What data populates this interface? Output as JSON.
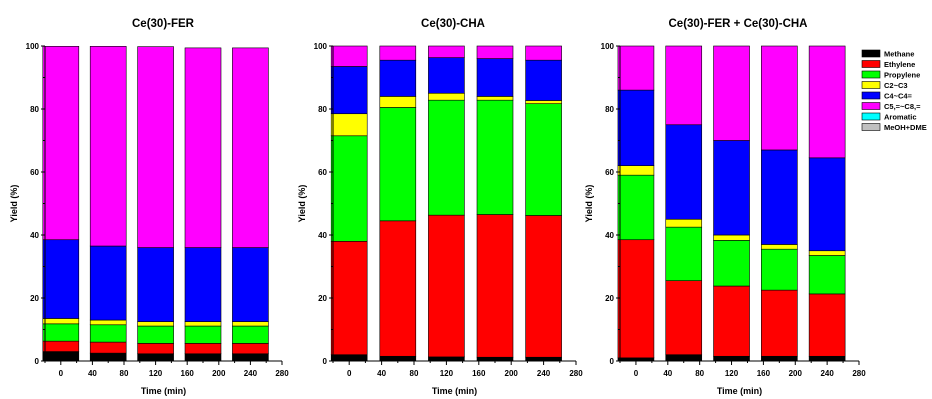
{
  "chart_data": [
    {
      "type": "bar",
      "stacked": true,
      "title": "Ce(30)-FER",
      "xlabel": "Time (min)",
      "ylabel": "Yield (%)",
      "ylim": [
        0,
        100
      ],
      "yticks": [
        0,
        20,
        40,
        60,
        80,
        100
      ],
      "xlim": [
        -20,
        280
      ],
      "xticks": [
        0,
        40,
        80,
        120,
        160,
        200,
        240,
        280
      ],
      "x": [
        0,
        60,
        120,
        180,
        240
      ],
      "series": [
        {
          "name": "Methane",
          "values": [
            3,
            2.5,
            2.3,
            2.3,
            2.3
          ]
        },
        {
          "name": "Ethylene",
          "values": [
            3.3,
            3.5,
            3.3,
            3.3,
            3.3
          ]
        },
        {
          "name": "Propylene",
          "values": [
            5.5,
            5.5,
            5.5,
            5.5,
            5.5
          ]
        },
        {
          "name": "C2~C3",
          "values": [
            1.7,
            1.5,
            1.4,
            1.4,
            1.4
          ]
        },
        {
          "name": "C4~C4=",
          "values": [
            25,
            23.5,
            23.5,
            23.5,
            23.5
          ]
        },
        {
          "name": "C5,=~C8,=",
          "values": [
            61.4,
            63.4,
            63.8,
            63.4,
            63.4
          ]
        },
        {
          "name": "Aromatic",
          "values": [
            0,
            0,
            0,
            0,
            0
          ]
        },
        {
          "name": "MeOH+DME",
          "values": [
            0,
            0,
            0,
            0,
            0
          ]
        }
      ]
    },
    {
      "type": "bar",
      "stacked": true,
      "title": "Ce(30)-CHA",
      "xlabel": "Time (min)",
      "ylabel": "Yield (%)",
      "ylim": [
        0,
        100
      ],
      "yticks": [
        0,
        20,
        40,
        60,
        80,
        100
      ],
      "xlim": [
        -20,
        280
      ],
      "xticks": [
        0,
        40,
        80,
        120,
        160,
        200,
        240,
        280
      ],
      "x": [
        0,
        60,
        120,
        180,
        240
      ],
      "series": [
        {
          "name": "Methane",
          "values": [
            2,
            1.5,
            1.3,
            1.2,
            1.2
          ]
        },
        {
          "name": "Ethylene",
          "values": [
            36,
            43,
            45,
            45.3,
            45
          ]
        },
        {
          "name": "Propylene",
          "values": [
            33.5,
            36,
            36.5,
            36.3,
            35.5
          ]
        },
        {
          "name": "C2~C3",
          "values": [
            7,
            3.5,
            2.2,
            1.2,
            1
          ]
        },
        {
          "name": "C4~C4=",
          "values": [
            15,
            11.5,
            11.3,
            12,
            12.8
          ]
        },
        {
          "name": "C5,=~C8,=",
          "values": [
            6.5,
            4.5,
            3.7,
            4,
            4.5
          ]
        },
        {
          "name": "Aromatic",
          "values": [
            0,
            0,
            0,
            0,
            0
          ]
        },
        {
          "name": "MeOH+DME",
          "values": [
            0,
            0,
            0,
            0,
            0
          ]
        }
      ]
    },
    {
      "type": "bar",
      "stacked": true,
      "title": "Ce(30)-FER + Ce(30)-CHA",
      "xlabel": "Time (min)",
      "ylabel": "Yield (%)",
      "ylim": [
        0,
        100
      ],
      "yticks": [
        0,
        20,
        40,
        60,
        80,
        100
      ],
      "xlim": [
        -20,
        280
      ],
      "xticks": [
        0,
        40,
        80,
        120,
        160,
        200,
        240,
        280
      ],
      "x": [
        0,
        60,
        120,
        180,
        240
      ],
      "series": [
        {
          "name": "Methane",
          "values": [
            1,
            2,
            1.5,
            1.5,
            1.5
          ]
        },
        {
          "name": "Ethylene",
          "values": [
            37.5,
            23.5,
            22.3,
            21,
            19.8
          ]
        },
        {
          "name": "Propylene",
          "values": [
            20.5,
            17,
            14.5,
            13,
            12.2
          ]
        },
        {
          "name": "C2~C3",
          "values": [
            3,
            2.5,
            1.7,
            1.5,
            1.5
          ]
        },
        {
          "name": "C4~C4=",
          "values": [
            24,
            30,
            30,
            30,
            29.5
          ]
        },
        {
          "name": "C5,=~C8,=",
          "values": [
            14,
            25,
            30,
            33,
            35.5
          ]
        },
        {
          "name": "Aromatic",
          "values": [
            0,
            0,
            0,
            0,
            0
          ]
        },
        {
          "name": "MeOH+DME",
          "values": [
            0,
            0,
            0,
            0,
            0
          ]
        }
      ]
    }
  ],
  "legend": {
    "placement": "right",
    "items": [
      {
        "label": "Methane",
        "color": "#000000"
      },
      {
        "label": "Ethylene",
        "color": "#ff0000"
      },
      {
        "label": "Propylene",
        "color": "#00ff00"
      },
      {
        "label": "C2~C3",
        "color": "#ffff00"
      },
      {
        "label": "C4~C4=",
        "color": "#0000ff"
      },
      {
        "label": "C5,=~C8,=",
        "color": "#ff00ff"
      },
      {
        "label": "Aromatic",
        "color": "#00ffff"
      },
      {
        "label": "MeOH+DME",
        "color": "#c0c0c0"
      }
    ]
  }
}
